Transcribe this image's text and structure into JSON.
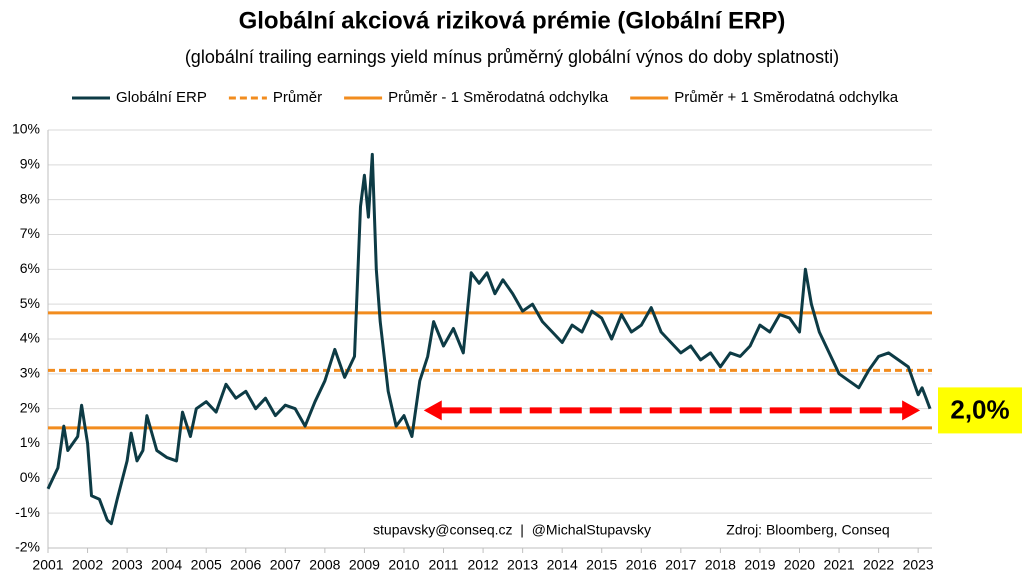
{
  "chart_data": {
    "type": "line",
    "title": "Globální akciová riziková prémie (Globální ERP)",
    "subtitle": "(globální trailing earnings yield mínus průměrný globální výnos do doby splatnosti)",
    "x": [
      2001.0,
      2001.25,
      2001.4,
      2001.5,
      2001.75,
      2001.85,
      2002.0,
      2002.1,
      2002.3,
      2002.5,
      2002.6,
      2002.75,
      2003.0,
      2003.1,
      2003.25,
      2003.4,
      2003.5,
      2003.75,
      2004.0,
      2004.25,
      2004.4,
      2004.6,
      2004.75,
      2005.0,
      2005.25,
      2005.5,
      2005.75,
      2006.0,
      2006.25,
      2006.5,
      2006.75,
      2007.0,
      2007.25,
      2007.5,
      2007.75,
      2008.0,
      2008.25,
      2008.5,
      2008.75,
      2008.9,
      2009.0,
      2009.1,
      2009.2,
      2009.3,
      2009.4,
      2009.6,
      2009.8,
      2010.0,
      2010.2,
      2010.4,
      2010.6,
      2010.75,
      2011.0,
      2011.25,
      2011.5,
      2011.7,
      2011.9,
      2012.1,
      2012.3,
      2012.5,
      2012.75,
      2013.0,
      2013.25,
      2013.5,
      2013.75,
      2014.0,
      2014.25,
      2014.5,
      2014.75,
      2015.0,
      2015.25,
      2015.5,
      2015.75,
      2016.0,
      2016.25,
      2016.5,
      2016.75,
      2017.0,
      2017.25,
      2017.5,
      2017.75,
      2018.0,
      2018.25,
      2018.5,
      2018.75,
      2019.0,
      2019.25,
      2019.5,
      2019.75,
      2020.0,
      2020.15,
      2020.3,
      2020.5,
      2020.75,
      2021.0,
      2021.25,
      2021.5,
      2021.75,
      2022.0,
      2022.25,
      2022.5,
      2022.75,
      2023.0,
      2023.1,
      2023.2,
      2023.3
    ],
    "series": [
      {
        "name": "Globální ERP",
        "color": "#0d3b45",
        "values": [
          -0.3,
          0.3,
          1.5,
          0.8,
          1.2,
          2.1,
          1.0,
          -0.5,
          -0.6,
          -1.2,
          -1.3,
          -0.6,
          0.5,
          1.3,
          0.5,
          0.8,
          1.8,
          0.8,
          0.6,
          0.5,
          1.9,
          1.2,
          2.0,
          2.2,
          1.9,
          2.7,
          2.3,
          2.5,
          2.0,
          2.3,
          1.8,
          2.1,
          2.0,
          1.5,
          2.2,
          2.8,
          3.7,
          2.9,
          3.5,
          7.8,
          8.7,
          7.5,
          9.3,
          6.0,
          4.5,
          2.5,
          1.5,
          1.8,
          1.2,
          2.8,
          3.5,
          4.5,
          3.8,
          4.3,
          3.6,
          5.9,
          5.6,
          5.9,
          5.3,
          5.7,
          5.3,
          4.8,
          5.0,
          4.5,
          4.2,
          3.9,
          4.4,
          4.2,
          4.8,
          4.6,
          4.0,
          4.7,
          4.2,
          4.4,
          4.9,
          4.2,
          3.9,
          3.6,
          3.8,
          3.4,
          3.6,
          3.2,
          3.6,
          3.5,
          3.8,
          4.4,
          4.2,
          4.7,
          4.6,
          4.2,
          6.0,
          5.0,
          4.2,
          3.6,
          3.0,
          2.8,
          2.6,
          3.1,
          3.5,
          3.6,
          3.4,
          3.2,
          2.4,
          2.6,
          2.3,
          2.0
        ]
      }
    ],
    "reference_lines": [
      {
        "name": "Průměr",
        "color": "#f28c1e",
        "dashed": true,
        "value": 3.1
      },
      {
        "name": "Průměr - 1 Směrodatná odchylka",
        "color": "#f28c1e",
        "dashed": false,
        "value": 1.45
      },
      {
        "name": "Průměr + 1 Směrodatná odchylka",
        "color": "#f28c1e",
        "dashed": false,
        "value": 4.75
      }
    ],
    "xlim": [
      2001,
      2023.35
    ],
    "xticks": [
      2001,
      2002,
      2003,
      2004,
      2005,
      2006,
      2007,
      2008,
      2009,
      2010,
      2011,
      2012,
      2013,
      2014,
      2015,
      2016,
      2017,
      2018,
      2019,
      2020,
      2021,
      2022,
      2023
    ],
    "ylim": [
      -2,
      10
    ],
    "yticks": [
      {
        "value": -2,
        "label": "-2%"
      },
      {
        "value": -1,
        "label": "-1%"
      },
      {
        "value": 0,
        "label": "0%"
      },
      {
        "value": 1,
        "label": "1%"
      },
      {
        "value": 2,
        "label": "2%"
      },
      {
        "value": 3,
        "label": "3%"
      },
      {
        "value": 4,
        "label": "4%"
      },
      {
        "value": 5,
        "label": "5%"
      },
      {
        "value": 6,
        "label": "6%"
      },
      {
        "value": 7,
        "label": "7%"
      },
      {
        "value": 8,
        "label": "8%"
      },
      {
        "value": 9,
        "label": "9%"
      },
      {
        "value": 10,
        "label": "10%"
      }
    ],
    "grid": true,
    "legend": "top",
    "annotations": [
      {
        "label": "2,0%",
        "x_from": 2010.5,
        "x_to": 2023.05,
        "y": 1.95,
        "color": "#ff0000",
        "box_color": "#ffff00"
      }
    ],
    "footer": {
      "contact": "stupavsky@conseq.cz  |  @MichalStupavsky",
      "source": "Zdroj: Bloomberg, Conseq"
    }
  }
}
